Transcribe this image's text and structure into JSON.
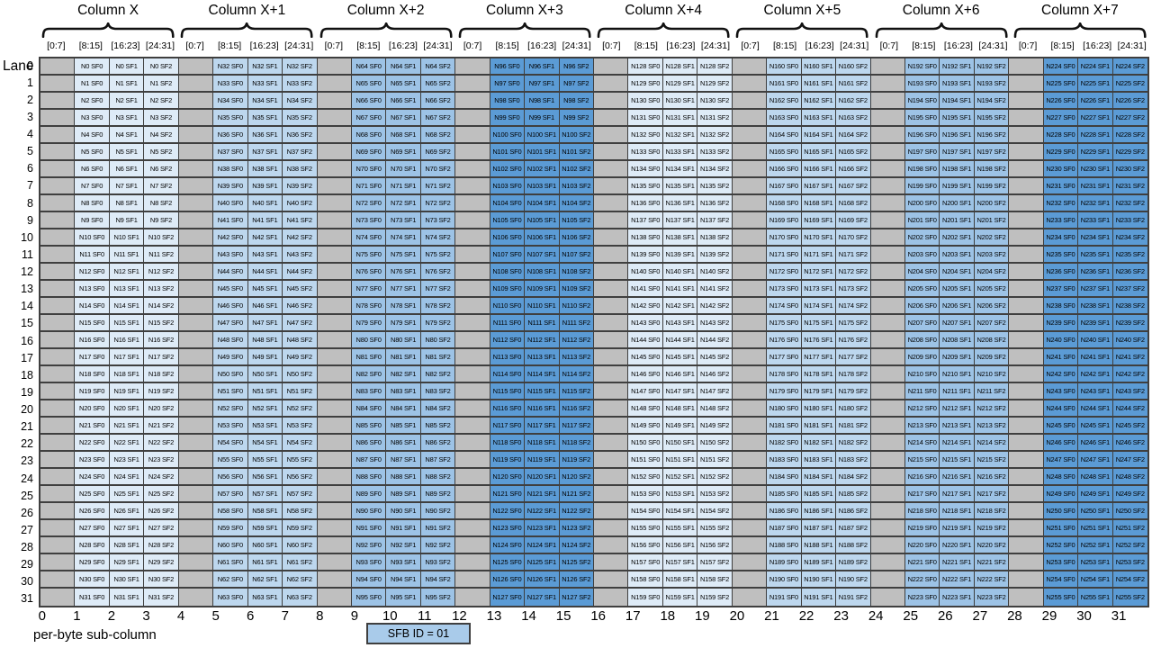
{
  "lane_axis": {
    "label": "Lane",
    "numbers": [
      0,
      1,
      2,
      3,
      4,
      5,
      6,
      7,
      8,
      9,
      10,
      11,
      12,
      13,
      14,
      15,
      16,
      17,
      18,
      19,
      20,
      21,
      22,
      23,
      24,
      25,
      26,
      27,
      28,
      29,
      30,
      31
    ]
  },
  "byte_axis": {
    "label": "per-byte sub-column",
    "numbers": [
      0,
      1,
      2,
      3,
      4,
      5,
      6,
      7,
      8,
      9,
      10,
      11,
      12,
      13,
      14,
      15,
      16,
      17,
      18,
      19,
      20,
      21,
      22,
      23,
      24,
      25,
      26,
      27,
      28,
      29,
      30,
      31
    ]
  },
  "bit_labels": [
    "[0:7]",
    "[8:15]",
    "[16:23]",
    "[24:31]"
  ],
  "groups": [
    {
      "label": "Column X",
      "base": 0,
      "fill": "#deebf7"
    },
    {
      "label": "Column X+1",
      "base": 32,
      "fill": "#bdd7ee"
    },
    {
      "label": "Column X+2",
      "base": 64,
      "fill": "#9dc3e6"
    },
    {
      "label": "Column X+3",
      "base": 96,
      "fill": "#5b9bd5"
    },
    {
      "label": "Column X+4",
      "base": 128,
      "fill": "#deebf7"
    },
    {
      "label": "Column X+5",
      "base": 160,
      "fill": "#bdd7ee"
    },
    {
      "label": "Column X+6",
      "base": 192,
      "fill": "#9dc3e6"
    },
    {
      "label": "Column X+7",
      "base": 224,
      "fill": "#5b9bd5"
    }
  ],
  "cell_pattern": "N{n} SF{s}",
  "sf_indices": [
    0,
    1,
    2
  ],
  "sfb_box": {
    "label": "SFB ID = 01"
  },
  "colors": {
    "filler_gray": "#bfbfbf",
    "grid_border": "#3f3f3f",
    "brace_stroke": "#111111",
    "sfb_fill": "#a9cbea",
    "text": "#000000"
  }
}
